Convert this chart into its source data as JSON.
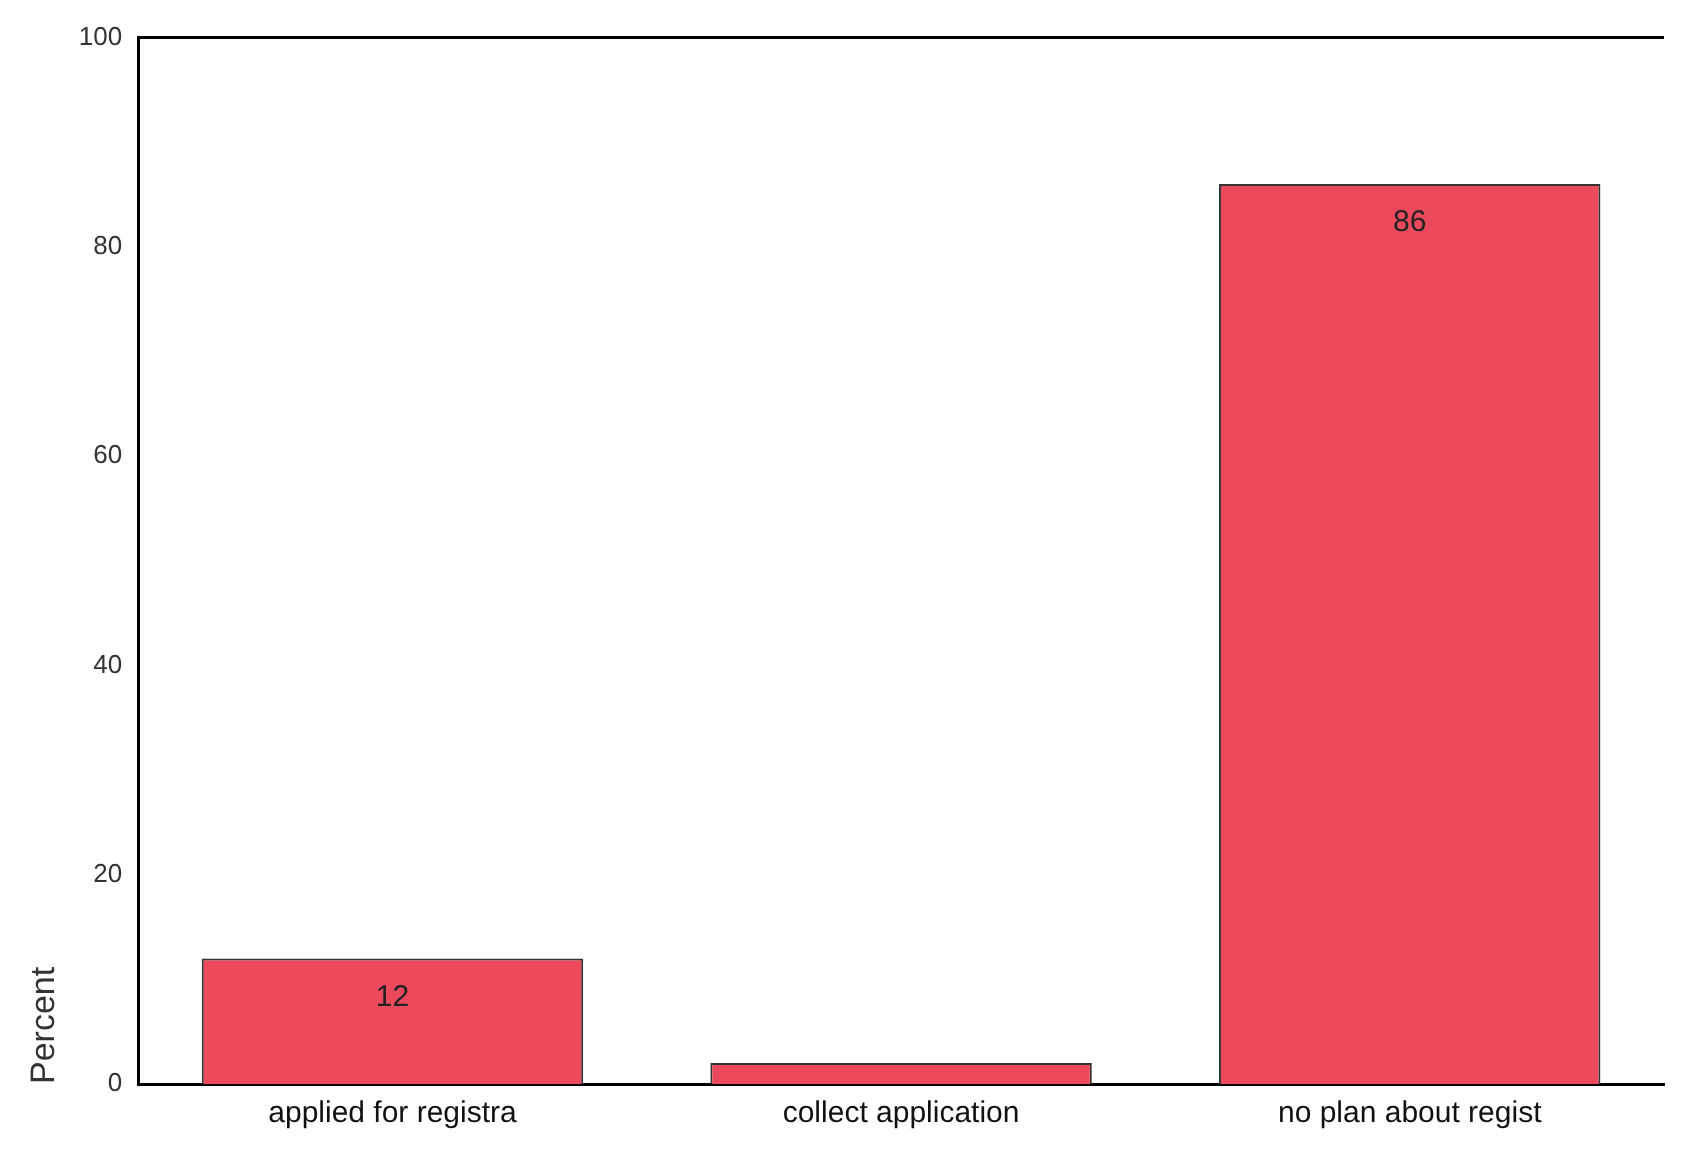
{
  "chart_data": {
    "type": "bar",
    "ylabel": "Percent",
    "categories": [
      "applied for registra",
      "collect application",
      "no plan about regist"
    ],
    "values": [
      12,
      2,
      86
    ],
    "value_labels": [
      "12",
      null,
      "86"
    ],
    "color": "#ec4a5c",
    "ylim": [
      0,
      100
    ],
    "yticks": [
      0,
      20,
      40,
      60,
      80,
      100
    ],
    "grid": false,
    "legend": false
  }
}
